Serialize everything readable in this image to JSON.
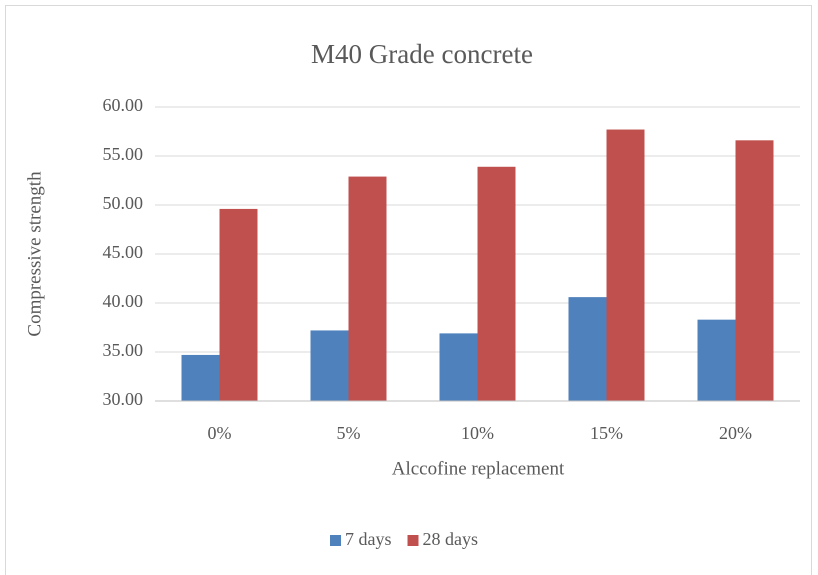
{
  "chart_data": {
    "type": "bar",
    "title": "M40 Grade concrete",
    "x_label": "Alccofine replacement",
    "y_label": "Compressive strength",
    "categories": [
      "0%",
      "5%",
      "10%",
      "15%",
      "20%"
    ],
    "series": [
      {
        "name": "7 days",
        "color": "#4f81bd",
        "values": [
          34.7,
          37.2,
          36.9,
          40.6,
          38.3
        ]
      },
      {
        "name": "28 days",
        "color": "#c0504d",
        "values": [
          49.6,
          52.9,
          53.9,
          57.7,
          56.6
        ]
      }
    ],
    "ylim": [
      30,
      60
    ],
    "yticks": [
      {
        "value": 30,
        "label": "30.00"
      },
      {
        "value": 35,
        "label": "35.00"
      },
      {
        "value": 40,
        "label": "40.00"
      },
      {
        "value": 45,
        "label": "45.00"
      },
      {
        "value": 50,
        "label": "50.00"
      },
      {
        "value": 55,
        "label": "55.00"
      },
      {
        "value": 60,
        "label": "60.00"
      }
    ],
    "grid": true,
    "legend": "bottom"
  }
}
